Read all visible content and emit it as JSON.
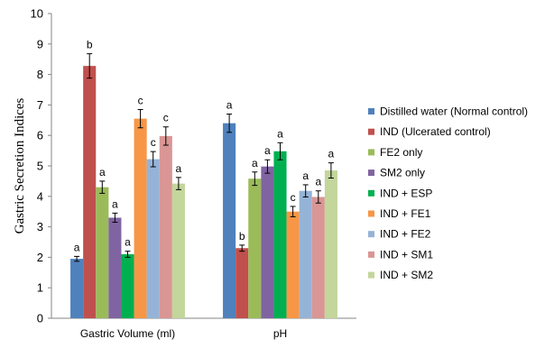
{
  "chart_data": {
    "type": "bar",
    "ylabel": "Gastric Secretion Indices",
    "xlabel": "",
    "ylim": [
      0,
      10
    ],
    "yticks": [
      0,
      1,
      2,
      3,
      4,
      5,
      6,
      7,
      8,
      9,
      10
    ],
    "grid": false,
    "legend_position": "right",
    "categories": [
      "Gastric Volume (ml)",
      "pH"
    ],
    "series": [
      {
        "name": "Distilled water (Normal control)",
        "color": "#4f81bd",
        "values": [
          1.95,
          6.4
        ],
        "errors": [
          0.08,
          0.3
        ],
        "labels": [
          "a",
          "a"
        ]
      },
      {
        "name": "IND (Ulcerated control)",
        "color": "#c0504d",
        "values": [
          8.28,
          2.3
        ],
        "errors": [
          0.4,
          0.1
        ],
        "labels": [
          "b",
          "b"
        ]
      },
      {
        "name": "FE2 only",
        "color": "#9bbb59",
        "values": [
          4.3,
          4.58
        ],
        "errors": [
          0.2,
          0.22
        ],
        "labels": [
          "a",
          "a"
        ]
      },
      {
        "name": "SM2 only",
        "color": "#8064a2",
        "values": [
          3.3,
          4.98
        ],
        "errors": [
          0.15,
          0.22
        ],
        "labels": [
          "a",
          "a"
        ]
      },
      {
        "name": "IND + ESP",
        "color": "#00b050",
        "values": [
          2.1,
          5.48
        ],
        "errors": [
          0.1,
          0.28
        ],
        "labels": [
          "a",
          "a"
        ]
      },
      {
        "name": "IND + FE1",
        "color": "#f79646",
        "values": [
          6.55,
          3.5
        ],
        "errors": [
          0.3,
          0.17
        ],
        "labels": [
          "c",
          "c"
        ]
      },
      {
        "name": "IND + FE2",
        "color": "#95b3d7",
        "values": [
          5.22,
          4.18
        ],
        "errors": [
          0.25,
          0.2
        ],
        "labels": [
          "c",
          "a"
        ]
      },
      {
        "name": "IND + SM1",
        "color": "#d99694",
        "values": [
          5.98,
          3.98
        ],
        "errors": [
          0.3,
          0.2
        ],
        "labels": [
          "c",
          "a"
        ]
      },
      {
        "name": "IND + SM2",
        "color": "#c3d69b",
        "values": [
          4.42,
          4.85
        ],
        "errors": [
          0.2,
          0.25
        ],
        "labels": [
          "a",
          "a"
        ]
      }
    ]
  }
}
